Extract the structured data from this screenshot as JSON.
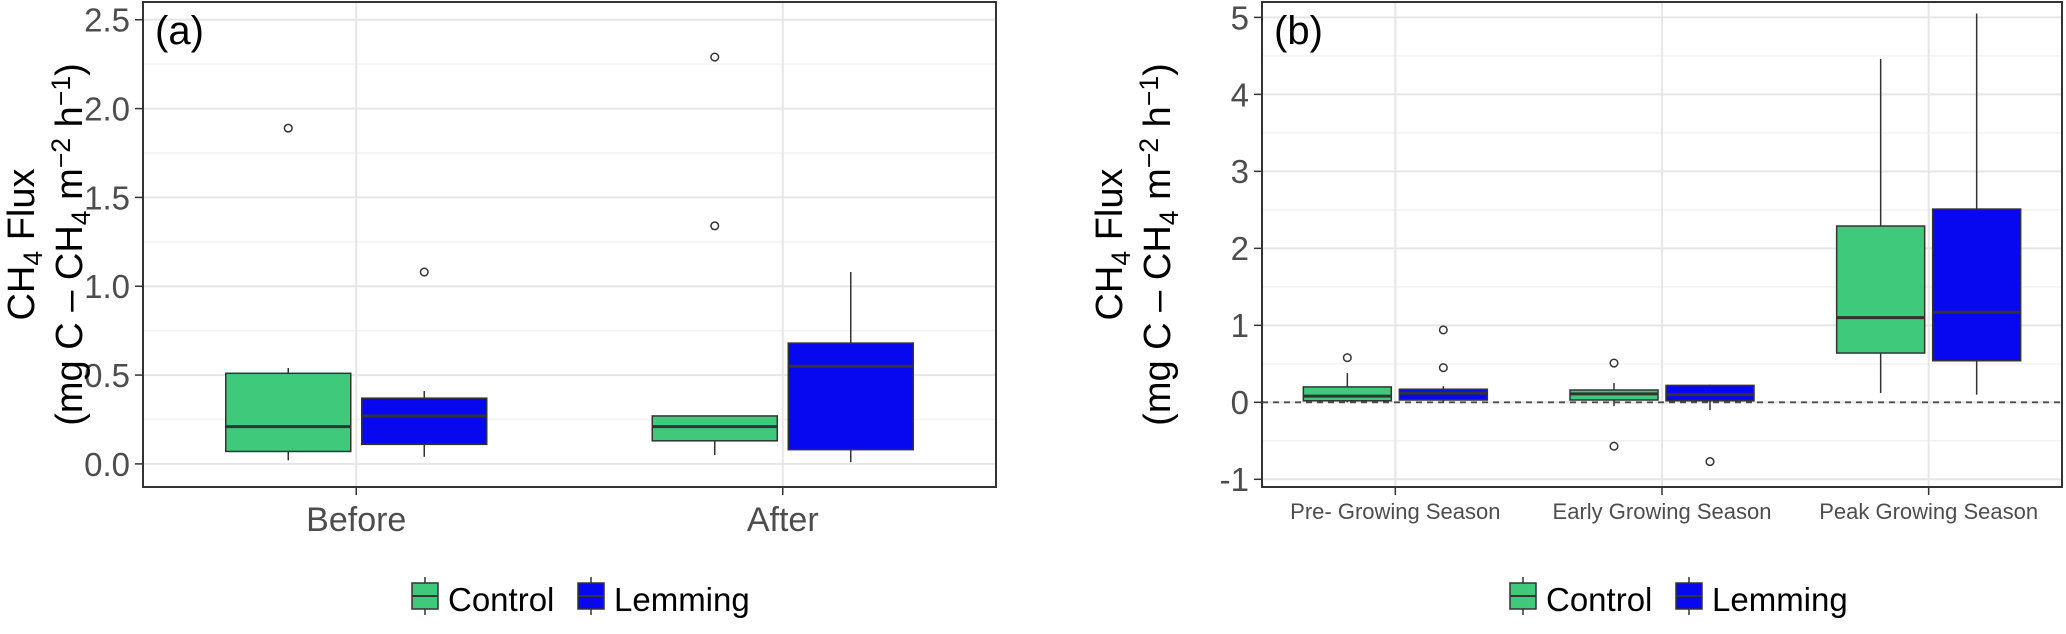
{
  "chart_data": [
    {
      "type": "box",
      "panel_label": "(a)",
      "ylabel_line1": {
        "main": "CH",
        "sub": "4",
        "rest": " Flux"
      },
      "ylabel_line2": {
        "pre": "(mg C – CH",
        "sub": "4",
        "mid": " m",
        "sup1": "−2",
        "mid2": " h",
        "sup2": "−1",
        "post": ")"
      },
      "categories": [
        "Before",
        "After"
      ],
      "ylim": [
        -0.13,
        2.6
      ],
      "yticks": [
        "0.0",
        "0.5",
        "1.0",
        "1.5",
        "2.0",
        "2.5"
      ],
      "ytick_values": [
        0,
        0.5,
        1.0,
        1.5,
        2.0,
        2.5
      ],
      "reference_line": null,
      "grid": true,
      "legend": [
        "Control",
        "Lemming"
      ],
      "series": [
        {
          "name": "Control",
          "color": "#3fc97a",
          "boxes": [
            {
              "category": "Before",
              "min": 0.02,
              "q1": 0.07,
              "median": 0.21,
              "q3": 0.51,
              "max": 0.54,
              "outliers": [
                1.89
              ]
            },
            {
              "category": "After",
              "min": 0.05,
              "q1": 0.13,
              "median": 0.21,
              "q3": 0.27,
              "max": 0.27,
              "outliers": [
                1.34,
                2.29
              ]
            }
          ]
        },
        {
          "name": "Lemming",
          "color": "#0808f0",
          "boxes": [
            {
              "category": "Before",
              "min": 0.04,
              "q1": 0.11,
              "median": 0.27,
              "q3": 0.37,
              "max": 0.41,
              "outliers": [
                1.08
              ]
            },
            {
              "category": "After",
              "min": 0.01,
              "q1": 0.08,
              "median": 0.55,
              "q3": 0.68,
              "max": 1.08,
              "outliers": []
            }
          ]
        }
      ]
    },
    {
      "type": "box",
      "panel_label": "(b)",
      "ylabel_line1": {
        "main": "CH",
        "sub": "4",
        "rest": " Flux"
      },
      "ylabel_line2": {
        "pre": "(mg C – CH",
        "sub": "4",
        "mid": " m",
        "sup1": "−2",
        "mid2": " h",
        "sup2": "−1",
        "post": ")"
      },
      "categories": [
        "Pre- Growing Season",
        "Early Growing Season",
        "Peak Growing Season"
      ],
      "ylim": [
        -1.1,
        5.2
      ],
      "yticks": [
        "-1",
        "0",
        "1",
        "2",
        "3",
        "4",
        "5"
      ],
      "ytick_values": [
        -1,
        0,
        1,
        2,
        3,
        4,
        5
      ],
      "reference_line": 0,
      "grid": true,
      "legend": [
        "Control",
        "Lemming"
      ],
      "series": [
        {
          "name": "Control",
          "color": "#3fc97a",
          "boxes": [
            {
              "category": "Pre- Growing Season",
              "min": 0.0,
              "q1": 0.02,
              "median": 0.08,
              "q3": 0.2,
              "max": 0.38,
              "outliers": [
                0.58
              ]
            },
            {
              "category": "Early Growing Season",
              "min": -0.05,
              "q1": 0.03,
              "median": 0.11,
              "q3": 0.16,
              "max": 0.25,
              "outliers": [
                0.51,
                -0.57
              ]
            },
            {
              "category": "Peak Growing Season",
              "min": 0.12,
              "q1": 0.64,
              "median": 1.1,
              "q3": 2.29,
              "max": 4.46,
              "outliers": []
            }
          ]
        },
        {
          "name": "Lemming",
          "color": "#0808f0",
          "boxes": [
            {
              "category": "Pre- Growing Season",
              "min": 0.0,
              "q1": 0.03,
              "median": 0.12,
              "q3": 0.17,
              "max": 0.21,
              "outliers": [
                0.45,
                0.94
              ]
            },
            {
              "category": "Early Growing Season",
              "min": -0.1,
              "q1": 0.02,
              "median": 0.1,
              "q3": 0.22,
              "max": 0.23,
              "outliers": [
                -0.77
              ]
            },
            {
              "category": "Peak Growing Season",
              "min": 0.1,
              "q1": 0.54,
              "median": 1.17,
              "q3": 2.51,
              "max": 5.05,
              "outliers": []
            }
          ]
        }
      ]
    }
  ]
}
